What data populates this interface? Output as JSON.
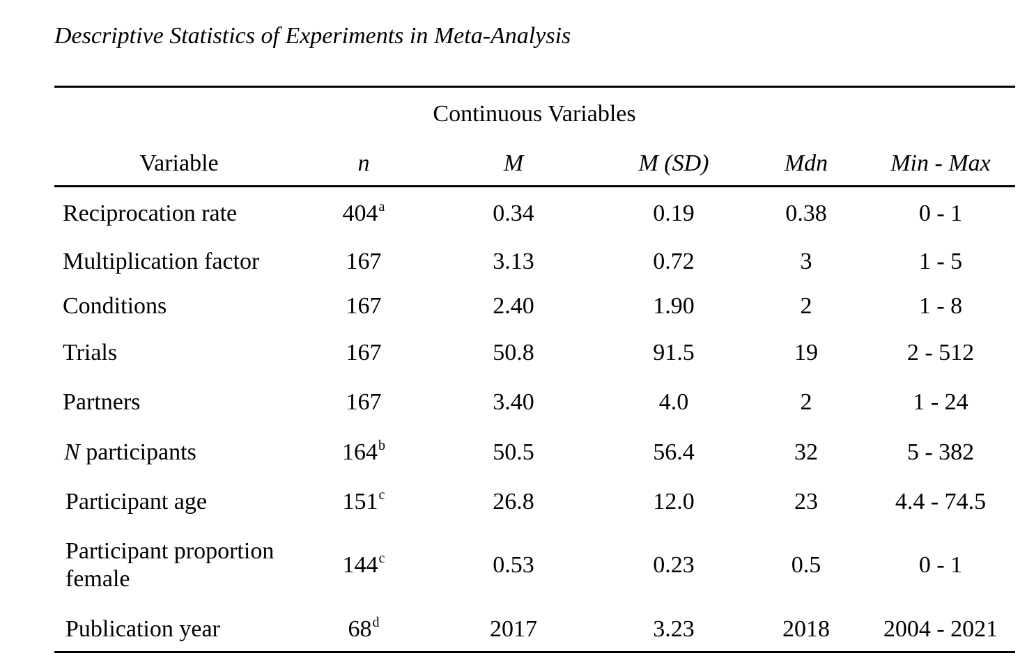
{
  "caption": "Descriptive Statistics of Experiments in Meta-Analysis",
  "section_title": "Continuous Variables",
  "headers": {
    "variable": "Variable",
    "n": "n",
    "m": "M",
    "m_sd": "M (SD)",
    "mdn": "Mdn",
    "min_max": "Min - Max"
  },
  "rows": [
    {
      "variable": "Reciprocation rate",
      "n": "404",
      "n_note": "a",
      "m": "0.34",
      "sd": "0.19",
      "mdn": "0.38",
      "min_max": "0 - 1"
    },
    {
      "variable": "Multiplication factor",
      "n": "167",
      "n_note": "",
      "m": "3.13",
      "sd": "0.72",
      "mdn": "3",
      "min_max": "1 - 5"
    },
    {
      "variable": "Conditions",
      "n": "167",
      "n_note": "",
      "m": "2.40",
      "sd": "1.90",
      "mdn": "2",
      "min_max": "1 - 8"
    },
    {
      "variable": "Trials",
      "n": "167",
      "n_note": "",
      "m": "50.8",
      "sd": "91.5",
      "mdn": "19",
      "min_max": "2 - 512"
    },
    {
      "variable": "Partners",
      "n": "167",
      "n_note": "",
      "m": "3.40",
      "sd": "4.0",
      "mdn": "2",
      "min_max": "1 - 24"
    },
    {
      "variable_italic": "N",
      "variable": " participants",
      "n": "164",
      "n_note": "b",
      "m": "50.5",
      "sd": "56.4",
      "mdn": "32",
      "min_max": "5 - 382"
    },
    {
      "variable": "Participant age",
      "n": "151",
      "n_note": "c",
      "m": "26.8",
      "sd": "12.0",
      "mdn": "23",
      "min_max": "4.4 - 74.5"
    },
    {
      "variable_line1": "Participant proportion",
      "variable_line2": "female",
      "n": "144",
      "n_note": "c",
      "m": "0.53",
      "sd": "0.23",
      "mdn": "0.5",
      "min_max": "0 - 1"
    },
    {
      "variable": "Publication year",
      "n": "68",
      "n_note": "d",
      "m": "2017",
      "sd": "3.23",
      "mdn": "2018",
      "min_max": "2004 - 2021"
    }
  ]
}
